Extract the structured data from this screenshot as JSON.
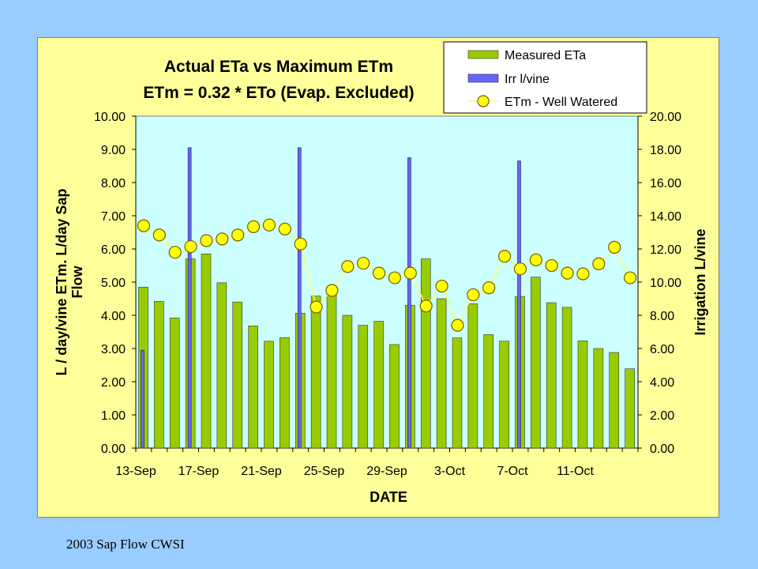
{
  "footer": {
    "caption": "2003 Sap Flow CWSI"
  },
  "colors": {
    "slide_background": "#99ccff",
    "chart_area": "#ffff99",
    "plot_area": "#ccffff",
    "measured_bar": "#99cc00",
    "irrigation_bar": "#6666ff",
    "etm_marker": "#ffff00",
    "etm_line": "#ffff66"
  },
  "chart_data": {
    "type": "bar",
    "title": [
      "Actual ETa vs Maximum ETm",
      "ETm = 0.32 * ETo (Evap. Excluded)"
    ],
    "xlabel": "DATE",
    "ylabel": "L / day/vine ETm. L/day Sap Flow",
    "ylabel_right": "Irrigation L/vine",
    "ylim": [
      0,
      10
    ],
    "ylim_right": [
      0,
      20
    ],
    "yticks": [
      "0.00",
      "1.00",
      "2.00",
      "3.00",
      "4.00",
      "5.00",
      "6.00",
      "7.00",
      "8.00",
      "9.00",
      "10.00"
    ],
    "yticks_right": [
      "0.00",
      "2.00",
      "4.00",
      "6.00",
      "8.00",
      "10.00",
      "12.00",
      "14.00",
      "16.00",
      "18.00",
      "20.00"
    ],
    "xtick_labels": [
      "13-Sep",
      "17-Sep",
      "21-Sep",
      "25-Sep",
      "29-Sep",
      "3-Oct",
      "7-Oct",
      "11-Oct"
    ],
    "grid": false,
    "legend_position": "top-right",
    "categories": [
      "13-Sep",
      "14-Sep",
      "15-Sep",
      "16-Sep",
      "17-Sep",
      "18-Sep",
      "19-Sep",
      "20-Sep",
      "21-Sep",
      "22-Sep",
      "23-Sep",
      "24-Sep",
      "25-Sep",
      "26-Sep",
      "27-Sep",
      "28-Sep",
      "29-Sep",
      "30-Sep",
      "1-Oct",
      "2-Oct",
      "3-Oct",
      "4-Oct",
      "5-Oct",
      "6-Oct",
      "7-Oct",
      "8-Oct",
      "9-Oct",
      "10-Oct",
      "11-Oct",
      "12-Oct",
      "13-Oct",
      "14-Oct"
    ],
    "series": [
      {
        "name": "Measured ETa",
        "type": "bar",
        "axis": "left",
        "values": [
          4.85,
          4.42,
          3.92,
          5.7,
          5.85,
          4.98,
          4.4,
          3.68,
          3.22,
          3.33,
          4.06,
          4.58,
          4.63,
          4.0,
          3.7,
          3.82,
          3.12,
          4.3,
          5.7,
          4.5,
          3.32,
          4.35,
          3.42,
          3.22,
          4.57,
          5.15,
          4.38,
          4.24,
          3.23,
          3.0,
          2.88,
          2.39
        ]
      },
      {
        "name": "Irr l/vine",
        "type": "bar",
        "axis": "right",
        "values": [
          5.9,
          0,
          0,
          18.1,
          0,
          0,
          0,
          0,
          0,
          0,
          18.1,
          0,
          0,
          0,
          0,
          0,
          0,
          17.5,
          0,
          0,
          0,
          0,
          0,
          0,
          17.3,
          0,
          0,
          0,
          0,
          0,
          0,
          0
        ]
      },
      {
        "name": "ETm - Well Watered",
        "type": "line",
        "axis": "left",
        "values": [
          6.7,
          6.42,
          5.9,
          6.07,
          6.25,
          6.3,
          6.42,
          6.67,
          6.72,
          6.6,
          6.15,
          4.25,
          4.75,
          5.47,
          5.57,
          5.27,
          5.13,
          5.27,
          4.28,
          4.88,
          3.7,
          4.62,
          4.83,
          5.78,
          5.4,
          5.67,
          5.5,
          5.27,
          5.25,
          5.55,
          6.05,
          5.13
        ]
      }
    ]
  }
}
